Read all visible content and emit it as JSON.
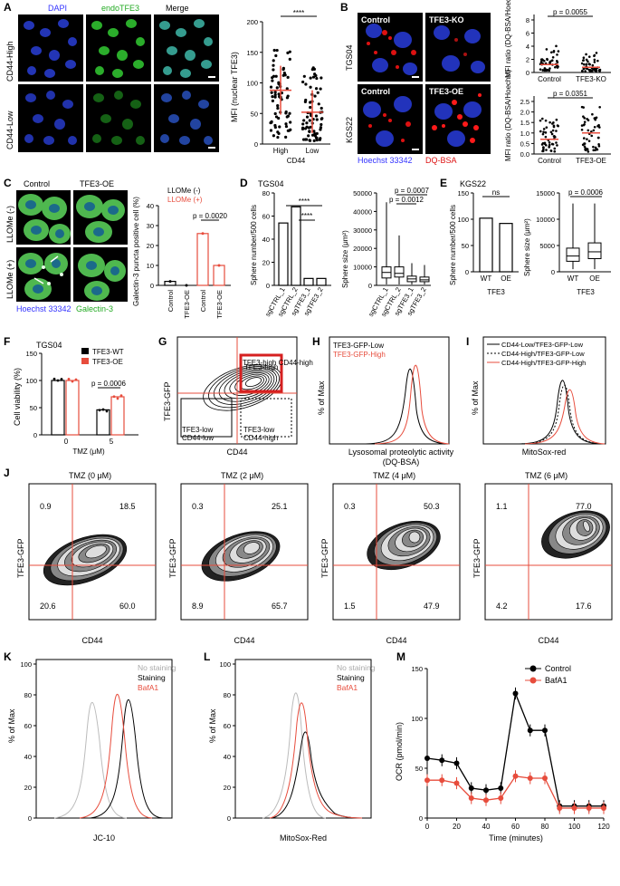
{
  "panels": {
    "A": {
      "letter": "A",
      "channels": [
        "DAPI",
        "endoTFE3",
        "Merge"
      ],
      "channel_colors": [
        "#3333ff",
        "#22bb22",
        "#000000"
      ],
      "rows": [
        "CD44-High",
        "CD44-Low"
      ],
      "ylabel": "MFI (nuclear TFE3)",
      "xlabel": "CD44",
      "groups": [
        "High",
        "Low"
      ],
      "sig": "****",
      "yticks": [
        "0",
        "50",
        "100",
        "150",
        "200"
      ]
    },
    "B": {
      "letter": "B",
      "rows": [
        "TGS04",
        "KGS22"
      ],
      "img_labels": [
        "Control",
        "TFE3-KO",
        "Control",
        "TFE3-OE"
      ],
      "legend_blue": "Hoechst 33342",
      "legend_red": "DQ-BSA",
      "ylabel": "MFI ratio (DQ-BSA/Hoechst)",
      "top_p": "p = 0.0055",
      "top_groups": [
        "Control",
        "TFE3-KO"
      ],
      "top_yticks": [
        "0",
        "2",
        "4",
        "6",
        "8"
      ],
      "bot_p": "p = 0.0351",
      "bot_groups": [
        "Control",
        "TFE3-OE"
      ],
      "bot_yticks": [
        "0.0",
        "0.5",
        "1.0",
        "1.5",
        "2.0",
        "2.5"
      ]
    },
    "C": {
      "letter": "C",
      "cols": [
        "Control",
        "TFE3-OE"
      ],
      "rows": [
        "LLOMe (-)",
        "LLOMe (+)"
      ],
      "legend_blue": "Hoechst 33342",
      "legend_green": "Galectin-3",
      "ylabel": "Galectin-3 puncta positive cell (%)",
      "legend_minus": "LLOMe (-)",
      "legend_plus": "LLOMe (+)",
      "p": "p = 0.0020",
      "groups": [
        "Control",
        "TFE3-OE",
        "Control",
        "TFE3-OE"
      ],
      "yticks": [
        "0",
        "10",
        "20",
        "30",
        "40"
      ]
    },
    "D": {
      "letter": "D",
      "title": "TGS04",
      "ylabel_left": "Sphere number/500 cells",
      "ylabel_right": "Sphere size (μm²)",
      "groups": [
        "sgCTRL_1",
        "sgCTRL_2",
        "sgTFE3_1",
        "sgTFE3_2"
      ],
      "sig1": "****",
      "sig2": "****",
      "p1": "p = 0.0007",
      "p2": "p = 0.0012",
      "left_yticks": [
        "0",
        "20",
        "40",
        "60",
        "80"
      ],
      "right_yticks": [
        "0",
        "10000",
        "20000",
        "30000",
        "40000",
        "50000"
      ]
    },
    "E": {
      "letter": "E",
      "title": "KGS22",
      "ylabel_left": "Sphere number/500 cells",
      "ylabel_right": "Sphere size (μm²)",
      "groups": [
        "WT",
        "OE"
      ],
      "xlabel": "TFE3",
      "ns": "ns",
      "p": "p = 0.0006",
      "left_yticks": [
        "0",
        "50",
        "100",
        "150"
      ],
      "right_yticks": [
        "0",
        "5000",
        "10000",
        "15000"
      ]
    },
    "F": {
      "letter": "F",
      "title": "TGS04",
      "legend": [
        "TFE3-WT",
        "TFE3-OE"
      ],
      "ylabel": "Cell viability (%)",
      "xlabel": "TMZ (μM)",
      "xticks": [
        "0",
        "5"
      ],
      "p": "p = 0.0006",
      "yticks": [
        "0",
        "50",
        "100",
        "150"
      ]
    },
    "G": {
      "letter": "G",
      "ylabel": "TFE3-GFP",
      "xlabel": "CD44",
      "gates": [
        "TFE3-high CD44-high",
        "TFE3-low CD44-low",
        "TFE3-low CD44-high"
      ]
    },
    "H": {
      "letter": "H",
      "legend": [
        "TFE3-GFP-Low",
        "TFE3-GFP-High"
      ],
      "ylabel": "% of Max",
      "xlabel": "Lysosomal proteolytic activity (DQ-BSA)"
    },
    "I": {
      "letter": "I",
      "legend": [
        "CD44-Low/TFE3-GFP-Low",
        "CD44-High/TFE3-GFP-Low",
        "CD44-High/TFE3-GFP-High"
      ],
      "ylabel": "% of Max",
      "xlabel": "MitoSox-red"
    },
    "J": {
      "letter": "J",
      "ylabel": "TFE3-GFP",
      "xlabel": "CD44",
      "plots": [
        {
          "title": "TMZ (0 μM)",
          "q": [
            "0.9",
            "18.5",
            "20.6",
            "60.0"
          ]
        },
        {
          "title": "TMZ (2 μM)",
          "q": [
            "0.3",
            "25.1",
            "8.9",
            "65.7"
          ]
        },
        {
          "title": "TMZ (4 μM)",
          "q": [
            "0.3",
            "50.3",
            "1.5",
            "47.9"
          ]
        },
        {
          "title": "TMZ (6 μM)",
          "q": [
            "1.1",
            "77.0",
            "4.2",
            "17.6"
          ]
        }
      ]
    },
    "K": {
      "letter": "K",
      "legend": [
        "No staining",
        "Staining",
        "BafA1"
      ],
      "ylabel": "% of Max",
      "xlabel": "JC-10"
    },
    "L": {
      "letter": "L",
      "legend": [
        "No staining",
        "Staining",
        "BafA1"
      ],
      "ylabel": "% of Max",
      "xlabel": "MitoSox-Red"
    },
    "M": {
      "letter": "M",
      "legend": [
        "Control",
        "BafA1"
      ],
      "ylabel": "OCR (pmol/min)",
      "xlabel": "Time (minutes)",
      "yticks": [
        "0",
        "50",
        "100",
        "150"
      ],
      "xticks": [
        "0",
        "20",
        "40",
        "60",
        "80",
        "100",
        "120"
      ]
    }
  },
  "chart_data": [
    {
      "panel": "A",
      "type": "scatter",
      "categories": [
        "High",
        "Low"
      ],
      "means": [
        88,
        52
      ],
      "sd": [
        [
          48,
          128
        ],
        [
          18,
          88
        ]
      ],
      "ylim": [
        0,
        200
      ]
    },
    {
      "panel": "C",
      "type": "bar",
      "categories": [
        "Control",
        "TFE3-OE",
        "Control",
        "TFE3-OE"
      ],
      "values": [
        2,
        0,
        26,
        10
      ],
      "ylim": [
        0,
        40
      ]
    },
    {
      "panel": "D-left",
      "type": "bar",
      "categories": [
        "sgCTRL_1",
        "sgCTRL_2",
        "sgTFE3_1",
        "sgTFE3_2"
      ],
      "values": [
        54,
        68,
        6,
        6
      ],
      "ylim": [
        0,
        80
      ]
    },
    {
      "panel": "D-right",
      "type": "box",
      "categories": [
        "sgCTRL_1",
        "sgCTRL_2",
        "sgTFE3_1",
        "sgTFE3_2"
      ],
      "median": [
        7000,
        6500,
        3500,
        3000
      ],
      "q1": [
        4000,
        4500,
        2000,
        2000
      ],
      "q3": [
        10000,
        10000,
        5000,
        4500
      ],
      "min": [
        500,
        500,
        500,
        500
      ],
      "max": [
        45000,
        27000,
        12000,
        11000
      ],
      "ylim": [
        0,
        50000
      ]
    },
    {
      "panel": "E-left",
      "type": "bar",
      "categories": [
        "WT",
        "OE"
      ],
      "values": [
        102,
        92
      ],
      "ylim": [
        0,
        150
      ]
    },
    {
      "panel": "E-right",
      "type": "box",
      "categories": [
        "WT",
        "OE"
      ],
      "median": [
        3000,
        3800
      ],
      "q1": [
        2000,
        2500
      ],
      "q3": [
        4500,
        5500
      ],
      "min": [
        500,
        500
      ],
      "max": [
        13000,
        13000
      ],
      "ylim": [
        0,
        15000
      ]
    },
    {
      "panel": "F",
      "type": "bar",
      "categories": [
        "0",
        "5"
      ],
      "series": [
        {
          "name": "TFE3-WT",
          "values": [
            100,
            46
          ]
        },
        {
          "name": "TFE3-OE",
          "values": [
            100,
            70
          ]
        }
      ],
      "ylim": [
        0,
        150
      ]
    },
    {
      "panel": "M",
      "type": "line",
      "x": [
        0,
        10,
        20,
        30,
        40,
        50,
        60,
        70,
        80,
        90,
        100,
        110,
        120
      ],
      "series": [
        {
          "name": "Control",
          "values": [
            60,
            58,
            55,
            30,
            28,
            30,
            125,
            88,
            88,
            12,
            12,
            12,
            12
          ]
        },
        {
          "name": "BafA1",
          "values": [
            38,
            38,
            35,
            20,
            18,
            20,
            42,
            40,
            40,
            10,
            10,
            10,
            10
          ]
        }
      ],
      "ylim": [
        0,
        150
      ]
    }
  ]
}
